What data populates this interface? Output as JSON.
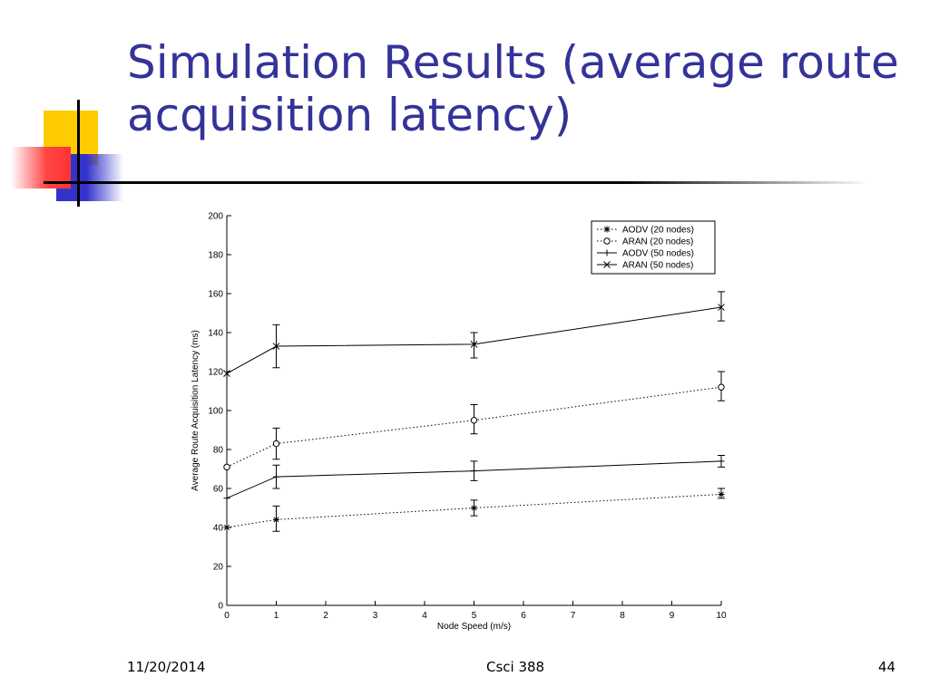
{
  "slide": {
    "title": "Simulation Results (average route acquisition latency)",
    "footer_date": "11/20/2014",
    "footer_course": "Csci 388",
    "footer_page": "44",
    "accent_color": "#333399"
  },
  "chart_data": {
    "type": "line",
    "xlabel": "Node Speed (m/s)",
    "ylabel": "Average Route Acquisition Latency (ms)",
    "xlim": [
      0,
      10
    ],
    "ylim": [
      0,
      200
    ],
    "xticks": [
      0,
      1,
      2,
      3,
      4,
      5,
      6,
      7,
      8,
      9,
      10
    ],
    "yticks": [
      0,
      20,
      40,
      60,
      80,
      100,
      120,
      140,
      160,
      180,
      200
    ],
    "grid": false,
    "legend_position": "top-right",
    "x": [
      0,
      1,
      5,
      10
    ],
    "series": [
      {
        "name": "AODV (20 nodes)",
        "marker": "asterisk",
        "line": "dotted",
        "values": [
          40,
          44,
          50,
          57
        ],
        "err_low": [
          40,
          38,
          46,
          55
        ],
        "err_high": [
          40,
          51,
          54,
          60
        ]
      },
      {
        "name": "ARAN (20 nodes)",
        "marker": "circle",
        "line": "dotted",
        "values": [
          71,
          83,
          95,
          112
        ],
        "err_low": [
          71,
          75,
          88,
          105
        ],
        "err_high": [
          71,
          91,
          103,
          120
        ]
      },
      {
        "name": "AODV (50 nodes)",
        "marker": "plus",
        "line": "solid",
        "values": [
          55,
          66,
          69,
          74
        ],
        "err_low": [
          55,
          60,
          64,
          71
        ],
        "err_high": [
          55,
          72,
          74,
          77
        ]
      },
      {
        "name": "ARAN (50 nodes)",
        "marker": "cross",
        "line": "solid",
        "values": [
          119,
          133,
          134,
          153
        ],
        "err_low": [
          119,
          122,
          127,
          146
        ],
        "err_high": [
          119,
          144,
          140,
          161
        ]
      }
    ]
  }
}
